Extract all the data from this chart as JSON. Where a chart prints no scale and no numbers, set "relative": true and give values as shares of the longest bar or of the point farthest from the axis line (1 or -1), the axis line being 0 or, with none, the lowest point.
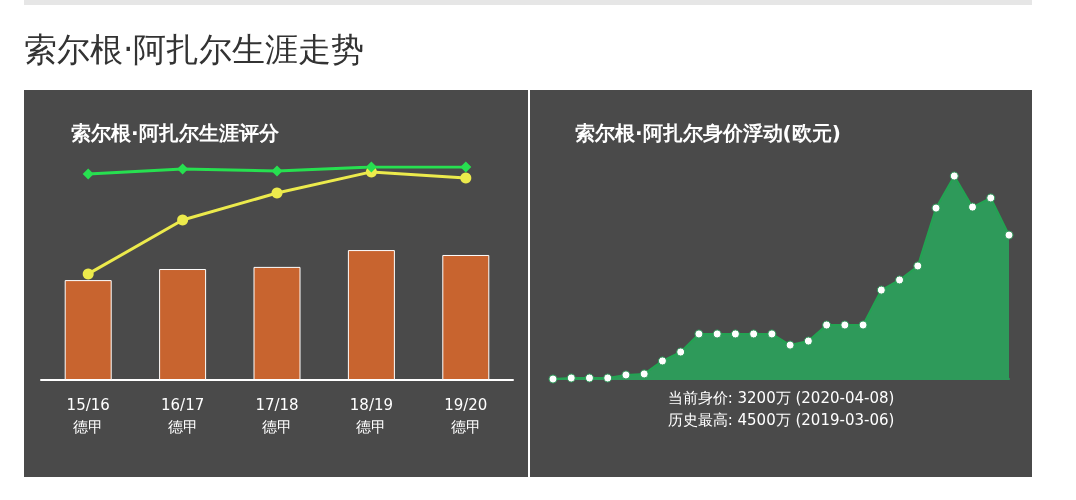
{
  "chart_data": [
    {
      "type": "bar",
      "title": "索尔根·阿扎尔生涯评分",
      "annotations": [
        "索尔根·阿扎尔生涯走势"
      ],
      "relative": true,
      "categories": [
        "15/16\n德甲",
        "16/17\n德甲",
        "17/18\n德甲",
        "18/19\n德甲",
        "19/20\n德甲"
      ],
      "series": [
        {
          "type": "bar",
          "color": "#c8642f",
          "values": [
            0.469,
            0.521,
            0.531,
            0.61,
            0.587
          ]
        },
        {
          "type": "line",
          "color": "#ecea4c",
          "marker": "circle",
          "values": [
            0.498,
            0.751,
            0.878,
            0.977,
            0.948
          ]
        },
        {
          "type": "line",
          "color": "#27e050",
          "marker": "diamond",
          "values": [
            0.967,
            0.991,
            0.981,
            1,
            1
          ]
        }
      ]
    },
    {
      "type": "area",
      "title": "索尔根·阿扎尔身价浮动(欧元)",
      "annotations": [
        "当前身价: 3200万 (2020-04-08)",
        "历史最高: 4500万 (2019-03-06)"
      ],
      "relative": true,
      "marker": "circle",
      "categories": [
        null,
        null,
        null,
        null,
        null,
        null,
        null,
        null,
        null,
        null,
        null,
        null,
        null,
        null,
        null,
        null,
        null,
        null,
        null,
        null,
        null,
        null,
        null,
        null,
        null,
        null
      ],
      "series": [
        {
          "color": "#2e9a5a",
          "values": [
            0,
            0.005,
            0.005,
            0.005,
            0.02,
            0.025,
            0.089,
            0.133,
            0.222,
            0.222,
            0.222,
            0.222,
            0.222,
            0.167,
            0.187,
            0.266,
            0.266,
            0.266,
            0.438,
            0.488,
            0.557,
            0.842,
            1,
            0.847,
            0.892,
            0.709
          ]
        }
      ]
    }
  ]
}
